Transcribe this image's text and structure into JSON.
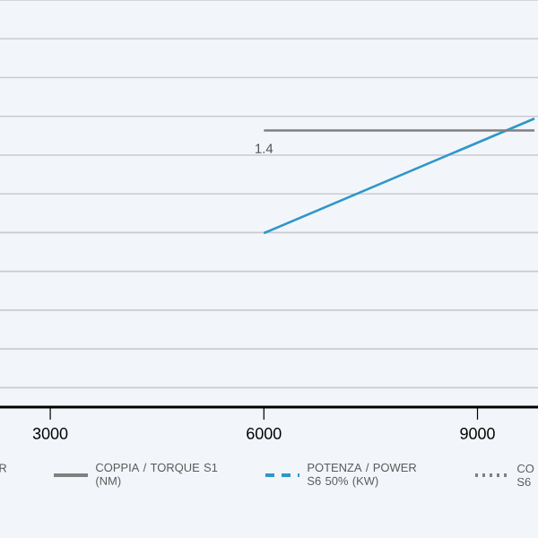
{
  "chart_data": {
    "type": "line",
    "xlim": [
      2294,
      9850
    ],
    "xticks": [
      3000,
      6000,
      9000
    ],
    "ylim": [
      0,
      2.06
    ],
    "tick_labels": "x",
    "grid": "y",
    "legend": "bottom",
    "x": [
      6000,
      9800
    ],
    "series": [
      {
        "color": "#2f97c7",
        "line_style": "solid",
        "values": [
          0.88,
          1.46
        ]
      },
      {
        "name": "COPPIA / TORQUE S1 (NM)",
        "color": "#808080",
        "line_style": "solid",
        "values": [
          1.4,
          1.4
        ],
        "value_labels": [
          "1.4",
          null
        ]
      },
      {
        "name": "POTENZA / POWER S6 50% (KW)",
        "color": "#2f97c7",
        "line_style": "dashed",
        "values": [
          null,
          null
        ]
      },
      {
        "name": "CO S6",
        "color": "#808080",
        "line_style": "dotted",
        "values": [
          null,
          null
        ]
      }
    ],
    "annotations": [
      "R"
    ]
  }
}
